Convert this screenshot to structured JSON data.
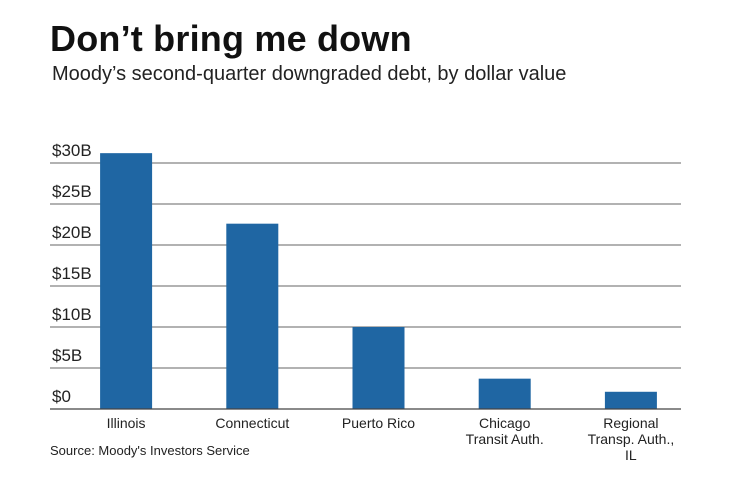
{
  "header": {
    "title": "Don’t bring me down",
    "subtitle": "Moody’s second-quarter downgraded debt, by dollar value"
  },
  "source": "Source: Moody's Investors Service",
  "colors": {
    "bar": "#1f66a3",
    "grid": "#666666",
    "axis": "#444444"
  },
  "chart_data": {
    "type": "bar",
    "title": "Don’t bring me down",
    "subtitle": "Moody’s second-quarter downgraded debt, by dollar value",
    "categories": [
      [
        "Illinois"
      ],
      [
        "Connecticut"
      ],
      [
        "Puerto Rico"
      ],
      [
        "Chicago",
        "Transit Auth."
      ],
      [
        "Regional",
        "Transp. Auth.,",
        "IL"
      ]
    ],
    "values": [
      31.2,
      22.6,
      10.0,
      3.7,
      2.1
    ],
    "unit": "billion USD",
    "ylim": [
      0,
      30
    ],
    "yticks": [
      0,
      5,
      10,
      15,
      20,
      25,
      30
    ],
    "ytick_labels": [
      "$0",
      "$5B",
      "$10B",
      "$15B",
      "$20B",
      "$25B",
      "$30B"
    ],
    "grid": true,
    "xlabel": "",
    "ylabel": ""
  }
}
